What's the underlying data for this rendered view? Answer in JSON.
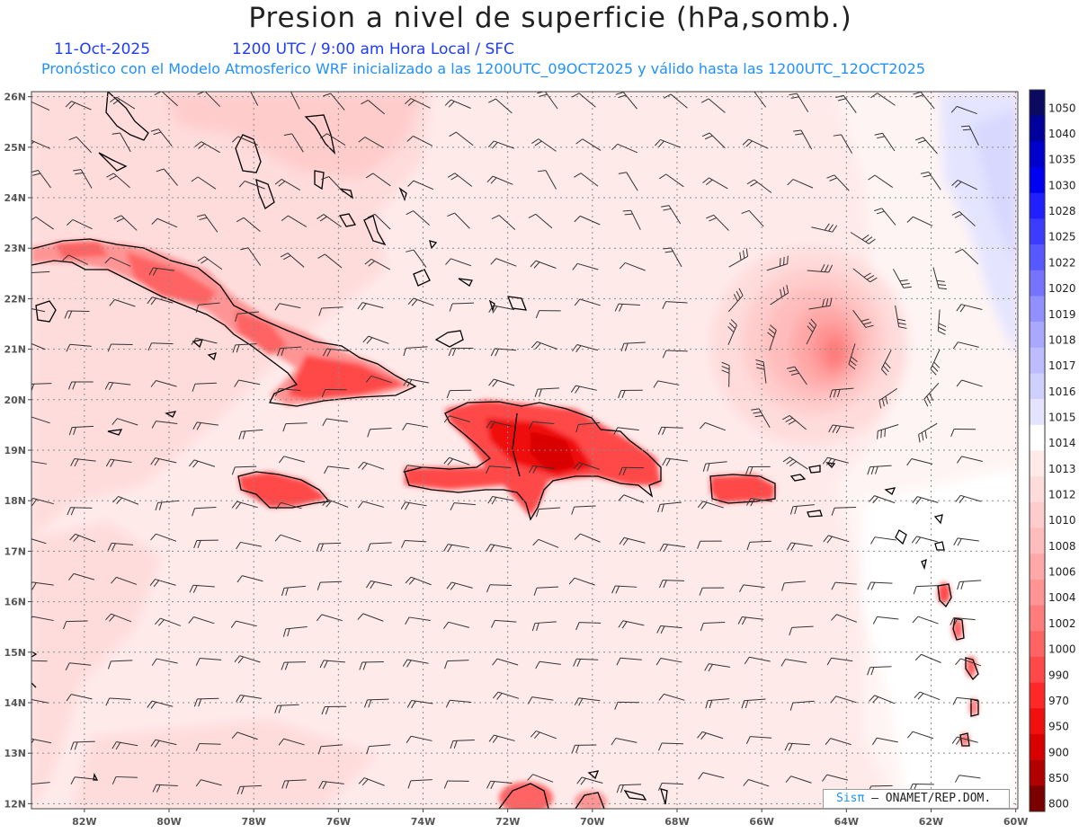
{
  "title": "Presion a nivel de superficie (hPa,somb.)",
  "date": "11-Oct-2025",
  "time_line": "1200 UTC / 9:00 am Hora Local / SFC",
  "subtitle": "Pronóstico con el Modelo Atmosferico WRF inicializado a las 1200UTC_09OCT2025 y válido hasta las  1200UTC_12OCT2025",
  "lat_labels": [
    "26N",
    "25N",
    "24N",
    "23N",
    "22N",
    "21N",
    "20N",
    "19N",
    "18N",
    "17N",
    "16N",
    "15N",
    "14N",
    "13N",
    "12N"
  ],
  "lon_labels": [
    "82W",
    "80W",
    "78W",
    "76W",
    "74W",
    "72W",
    "70W",
    "68W",
    "66W",
    "64W",
    "62W",
    "60W"
  ],
  "colorbar": [
    {
      "label": "1050",
      "color": "#0a0a60"
    },
    {
      "label": "1040",
      "color": "#00009a"
    },
    {
      "label": "1035",
      "color": "#0000cc"
    },
    {
      "label": "1030",
      "color": "#0000f0"
    },
    {
      "label": "1028",
      "color": "#2020ff"
    },
    {
      "label": "1025",
      "color": "#3c3cff"
    },
    {
      "label": "1022",
      "color": "#5858ff"
    },
    {
      "label": "1020",
      "color": "#7474ff"
    },
    {
      "label": "1019",
      "color": "#9090ff"
    },
    {
      "label": "1018",
      "color": "#a8a8ff"
    },
    {
      "label": "1017",
      "color": "#bcbcff"
    },
    {
      "label": "1016",
      "color": "#d0d0ff"
    },
    {
      "label": "1015",
      "color": "#e4e4ff"
    },
    {
      "label": "1014",
      "color": "#ffffff"
    },
    {
      "label": "1013",
      "color": "#ffeaea"
    },
    {
      "label": "1012",
      "color": "#ffdcdc"
    },
    {
      "label": "1010",
      "color": "#ffcccc"
    },
    {
      "label": "1008",
      "color": "#ffbcbc"
    },
    {
      "label": "1006",
      "color": "#ffa8a8"
    },
    {
      "label": "1004",
      "color": "#ff9494"
    },
    {
      "label": "1002",
      "color": "#ff7c7c"
    },
    {
      "label": "1000",
      "color": "#ff6464"
    },
    {
      "label": "990",
      "color": "#ff4848"
    },
    {
      "label": "970",
      "color": "#ff2828"
    },
    {
      "label": "950",
      "color": "#f01010"
    },
    {
      "label": "900",
      "color": "#d80000"
    },
    {
      "label": "850",
      "color": "#b00000"
    },
    {
      "label": "800",
      "color": "#7a0000"
    }
  ],
  "colors": {
    "background_sea": "#ffeaea",
    "land_high": "#ff4848",
    "cyclone": "#ff7c7c",
    "high_pressure": "#e4e4ff"
  },
  "brand": {
    "logo": "Sis",
    "logo_pi": "π",
    "sep": " –",
    "org": " ONAMET/REP.DOM."
  }
}
